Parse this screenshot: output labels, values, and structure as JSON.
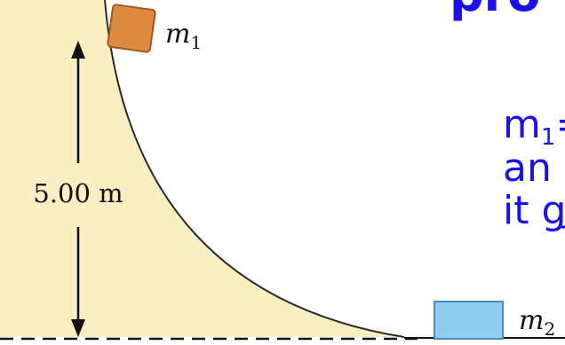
{
  "diagram": {
    "mass1_label": "m",
    "mass1_subscript": "1",
    "mass2_label": "m",
    "mass2_subscript": "2",
    "height_label": "5.00 m",
    "colors": {
      "ramp_fill": "#fbeec2",
      "mass1_fill": "#dd8a3e",
      "mass2_fill": "#8ecdf0",
      "text_blue": "#1a10e8"
    }
  },
  "overlay_text": {
    "line_top": "pro",
    "line1_main": "m",
    "line1_sub": "1",
    "line1_rest": "=",
    "line2": "an",
    "line3": "it g"
  }
}
